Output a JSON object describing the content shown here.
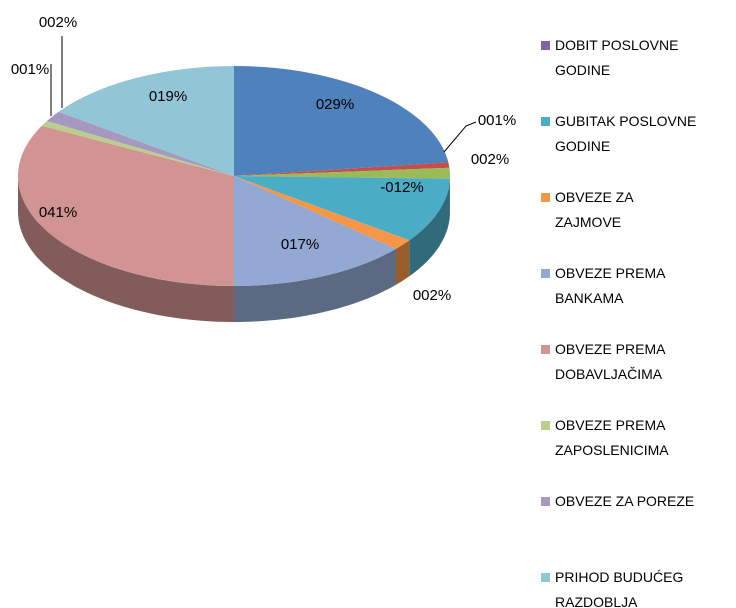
{
  "chart_data": {
    "type": "pie",
    "categories": [
      null,
      null,
      null,
      "DOBIT POSLOVNE GODINE",
      "GUBITAK POSLOVNE GODINE",
      "OBVEZE ZA ZAJMOVE",
      "OBVEZE PREMA BANKAMA",
      "OBVEZE PREMA DOBAVLJAČIMA",
      "OBVEZE PREMA ZAPOSLENICIMA",
      "OBVEZE ZA POREZE",
      "PRIHOD BUDUĆEG RAZDOBLJA"
    ],
    "values": [
      29,
      1,
      2,
      0,
      -12,
      2,
      17,
      41,
      1,
      2,
      19
    ],
    "value_labels": [
      "029%",
      "001%",
      "002%",
      null,
      "-012%",
      "002%",
      "017%",
      "041%",
      "001%",
      "002%",
      "019%"
    ],
    "colors": [
      "#4F81BD",
      "#C0504D",
      "#9BBB59",
      "#8064A2",
      "#4BACC6",
      "#F79646",
      "#93A9D3",
      "#D19492",
      "#B9CF8C",
      "#A798BF",
      "#92C5D6"
    ],
    "legend": "right"
  }
}
